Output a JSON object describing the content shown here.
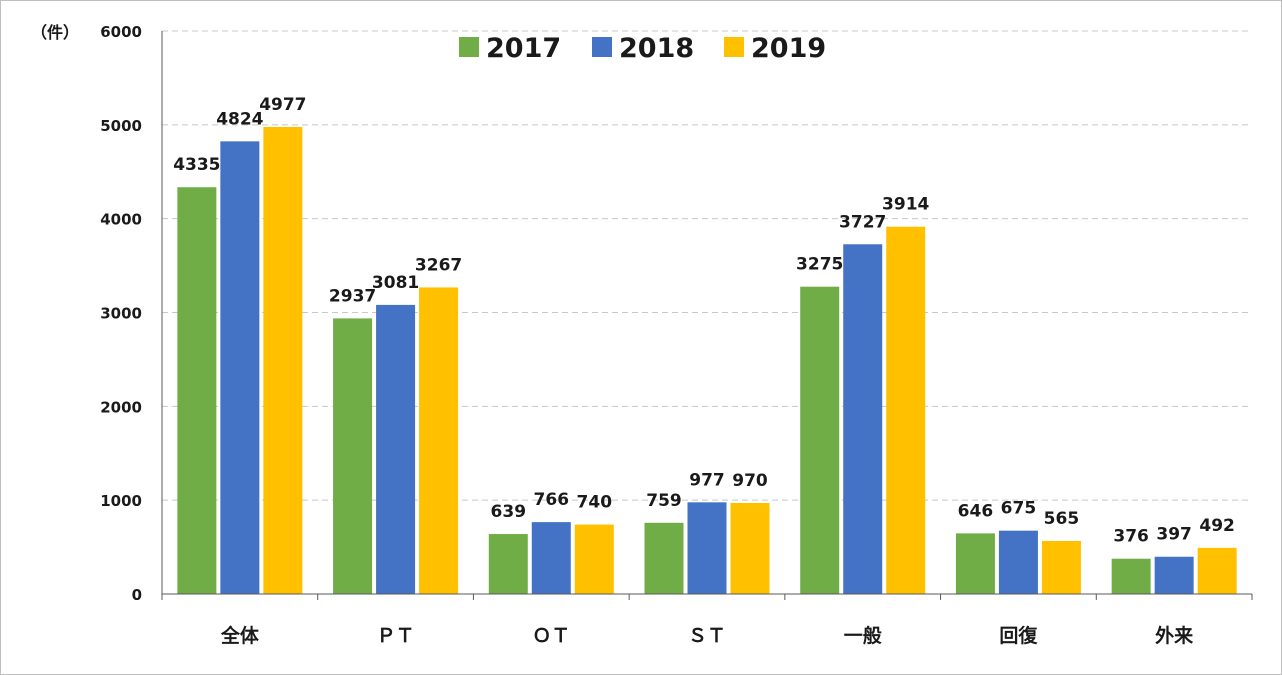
{
  "chart_data": {
    "type": "bar",
    "unit_label": "（件）",
    "categories": [
      "全体",
      "ＰＴ",
      "ＯＴ",
      "ＳＴ",
      "一般",
      "回復",
      "外来"
    ],
    "series": [
      {
        "name": "2017",
        "color": "#70ad47",
        "values": [
          4335,
          2937,
          639,
          759,
          3275,
          646,
          376
        ]
      },
      {
        "name": "2018",
        "color": "#4472c4",
        "values": [
          4824,
          3081,
          766,
          977,
          3727,
          675,
          397
        ]
      },
      {
        "name": "2019",
        "color": "#ffc000",
        "values": [
          4977,
          3267,
          740,
          970,
          3914,
          565,
          492
        ]
      }
    ],
    "ylim": [
      0,
      6000
    ],
    "yticks": [
      0,
      1000,
      2000,
      3000,
      4000,
      5000,
      6000
    ],
    "grid": true,
    "legend_position": "top"
  }
}
